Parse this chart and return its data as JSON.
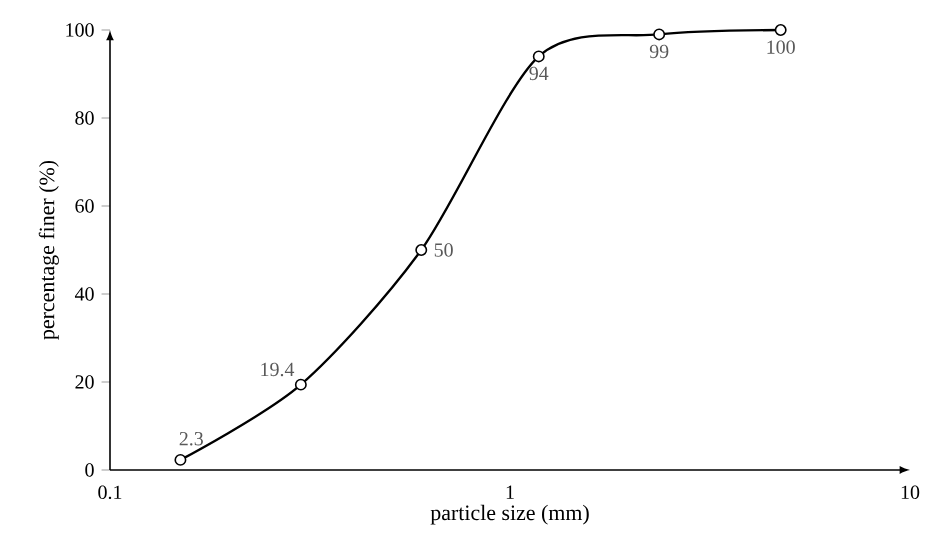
{
  "chart_data": {
    "type": "line",
    "xlabel": "particle size (mm)",
    "ylabel": "percentage finer (%)",
    "x": [
      0.15,
      0.3,
      0.6,
      1.18,
      2.36,
      4.75
    ],
    "series": [
      {
        "color": "#000000",
        "values": [
          2.3,
          19.4,
          50,
          94,
          99,
          100
        ],
        "value_labels": [
          "2.3",
          "19.4",
          "50",
          "94",
          "99",
          "100"
        ]
      }
    ],
    "log": "x",
    "xlim": [
      0.1,
      10
    ],
    "xticks": [
      0.1,
      1,
      10
    ],
    "ylim": [
      0,
      100
    ],
    "yticks": [
      0,
      20,
      40,
      60,
      80,
      100
    ],
    "grid": false,
    "marker": "circle",
    "line_style": "solid"
  }
}
